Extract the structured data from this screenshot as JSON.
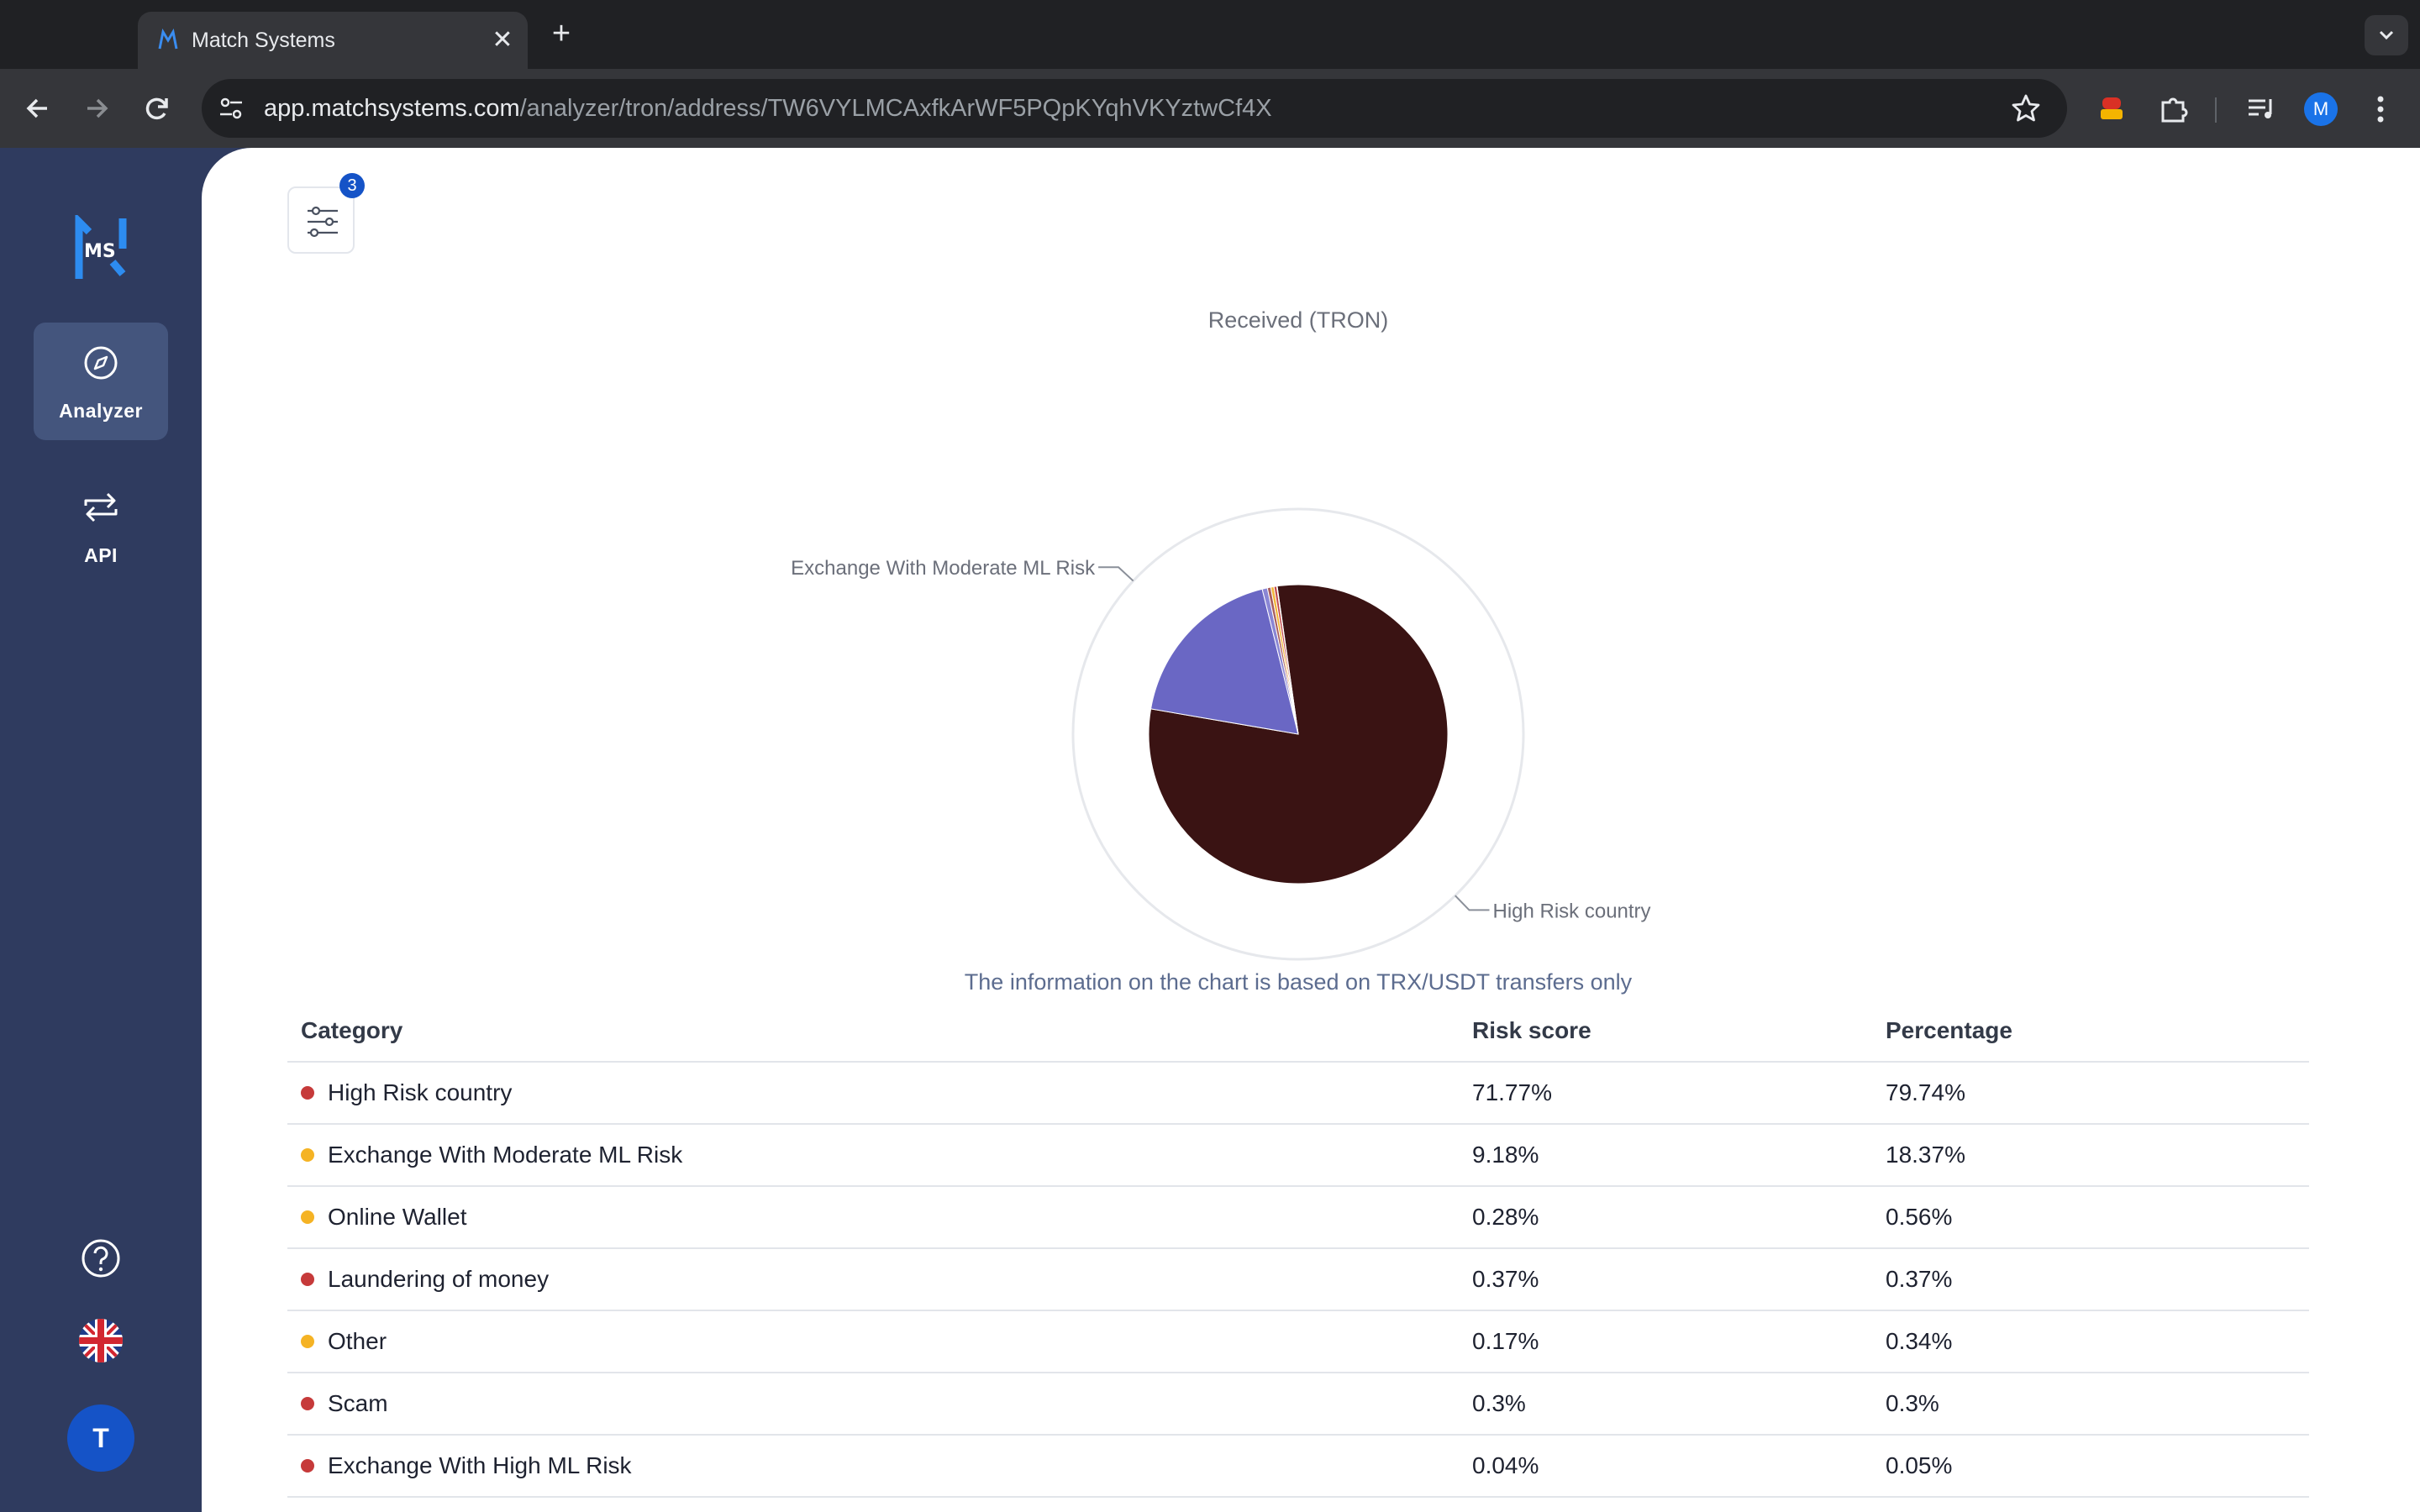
{
  "browser": {
    "tab_title": "Match Systems",
    "new_tab": "+",
    "close": "✕",
    "url_host": "app.matchsystems.com",
    "url_path": "/analyzer/tron/address/TW6VYLMCAxfkArWF5PQpKYqhVKYztwCf4X",
    "profile_initial": "M"
  },
  "sidebar": {
    "logo_text": "MS",
    "items": [
      {
        "label": "Analyzer",
        "icon": "compass-icon",
        "active": true
      },
      {
        "label": "API",
        "icon": "swap-arrows-icon",
        "active": false
      }
    ],
    "help_icon": "question-circle-icon",
    "language_icon": "uk-flag-icon",
    "user_initial": "T"
  },
  "filters": {
    "badge_count": "3"
  },
  "chart_data": {
    "type": "pie",
    "title": "Received (TRON)",
    "note": "The information on the chart is based on TRX/USDT transfers only",
    "slices": [
      {
        "label": "High Risk country",
        "value": 79.74,
        "color": "#3a1313",
        "callout": true
      },
      {
        "label": "Exchange With Moderate ML Risk",
        "value": 18.37,
        "color": "#6a67c4",
        "callout": true
      },
      {
        "label": "Online Wallet",
        "value": 0.56,
        "color": "#8a86d4",
        "callout": false
      },
      {
        "label": "Laundering of money",
        "value": 0.37,
        "color": "#a85d5d",
        "callout": false
      },
      {
        "label": "Other",
        "value": 0.34,
        "color": "#f2b73a",
        "callout": false
      },
      {
        "label": "Scam",
        "value": 0.3,
        "color": "#c14a4a",
        "callout": false
      },
      {
        "label": "Exchange With High ML Risk",
        "value": 0.05,
        "color": "#d06060",
        "callout": false
      }
    ]
  },
  "table": {
    "headers": {
      "category": "Category",
      "risk_score": "Risk score",
      "percentage": "Percentage"
    },
    "rows": [
      {
        "category": "High Risk country",
        "risk_score": "71.77%",
        "percentage": "79.74%",
        "dot_color": "#c63a3a"
      },
      {
        "category": "Exchange With Moderate ML Risk",
        "risk_score": "9.18%",
        "percentage": "18.37%",
        "dot_color": "#f5b324"
      },
      {
        "category": "Online Wallet",
        "risk_score": "0.28%",
        "percentage": "0.56%",
        "dot_color": "#f5b324"
      },
      {
        "category": "Laundering of money",
        "risk_score": "0.37%",
        "percentage": "0.37%",
        "dot_color": "#c63a3a"
      },
      {
        "category": "Other",
        "risk_score": "0.17%",
        "percentage": "0.34%",
        "dot_color": "#f5b324"
      },
      {
        "category": "Scam",
        "risk_score": "0.3%",
        "percentage": "0.3%",
        "dot_color": "#c63a3a"
      },
      {
        "category": "Exchange With High ML Risk",
        "risk_score": "0.04%",
        "percentage": "0.05%",
        "dot_color": "#c63a3a"
      }
    ]
  }
}
